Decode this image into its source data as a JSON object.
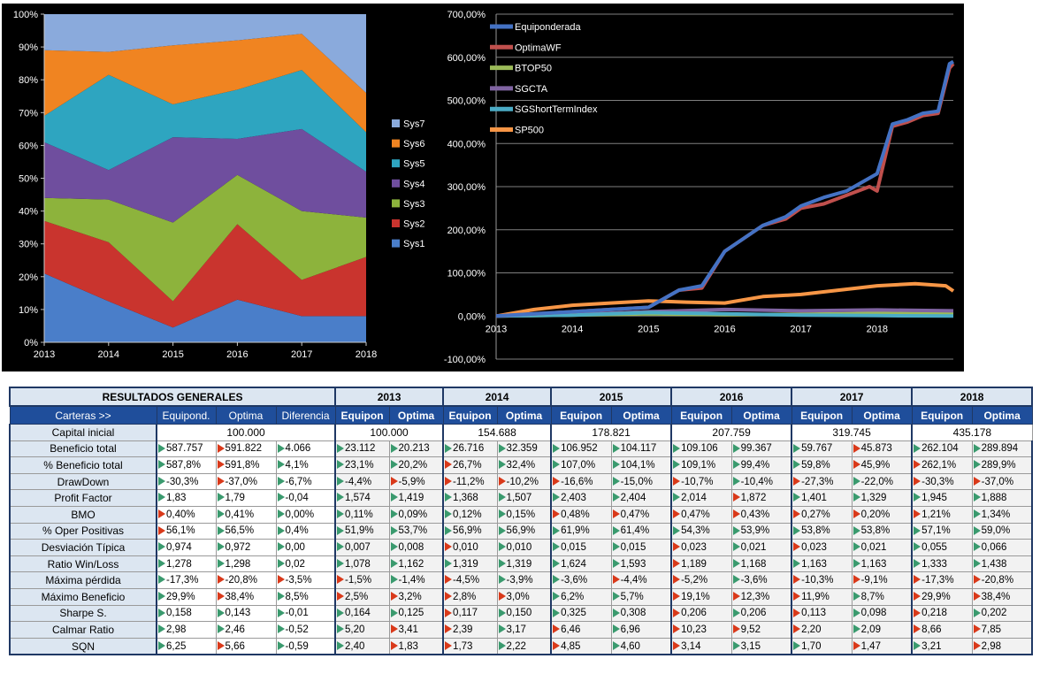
{
  "chart_data": [
    {
      "type": "area",
      "stacked": true,
      "categories": [
        "2013",
        "2014",
        "2015",
        "2016",
        "2017",
        "2018"
      ],
      "y_ticks": [
        "0%",
        "10%",
        "20%",
        "30%",
        "40%",
        "50%",
        "60%",
        "70%",
        "80%",
        "90%",
        "100%"
      ],
      "ylim": [
        0,
        100
      ],
      "legend_position": "right",
      "colors": {
        "Sys1": "#4a7ec9",
        "Sys2": "#c9342e",
        "Sys3": "#8db33c",
        "Sys4": "#6f4e9e",
        "Sys5": "#2ea5c0",
        "Sys6": "#f08421",
        "Sys7": "#8aaadc"
      },
      "series": [
        {
          "name": "Sys1",
          "values": [
            21,
            12.5,
            4.5,
            13,
            8,
            8
          ]
        },
        {
          "name": "Sys2",
          "values": [
            16,
            18,
            8,
            23,
            11,
            18
          ]
        },
        {
          "name": "Sys3",
          "values": [
            7,
            13,
            24,
            15,
            21,
            12
          ]
        },
        {
          "name": "Sys4",
          "values": [
            17,
            9,
            26,
            11,
            25,
            14
          ]
        },
        {
          "name": "Sys5",
          "values": [
            8,
            29,
            10,
            15,
            18,
            12
          ]
        },
        {
          "name": "Sys6",
          "values": [
            20,
            7,
            18,
            15,
            11,
            12
          ]
        },
        {
          "name": "Sys7",
          "values": [
            11,
            11.5,
            9.5,
            8,
            6,
            24
          ]
        }
      ],
      "legend_order": [
        "Sys7",
        "Sys6",
        "Sys5",
        "Sys4",
        "Sys3",
        "Sys2",
        "Sys1"
      ]
    },
    {
      "type": "line",
      "x_ticks": [
        "2013",
        "2014",
        "2015",
        "2016",
        "2017",
        "2018"
      ],
      "y_ticks": [
        "-100,00%",
        "0,00%",
        "100,00%",
        "200,00%",
        "300,00%",
        "400,00%",
        "500,00%",
        "600,00%",
        "700,00%"
      ],
      "ylim": [
        -100,
        700
      ],
      "xlim": [
        2013,
        2019
      ],
      "legend_position": "top-left",
      "series": [
        {
          "name": "Equiponderada",
          "color": "#4472c4",
          "x": [
            2013,
            2013.5,
            2014,
            2014.5,
            2015,
            2015.4,
            2015.7,
            2016,
            2016.5,
            2016.8,
            2017,
            2017.3,
            2017.6,
            2017.9,
            2018,
            2018.2,
            2018.4,
            2018.6,
            2018.8,
            2018.95,
            2019
          ],
          "y": [
            0,
            5,
            10,
            15,
            20,
            60,
            70,
            150,
            210,
            230,
            255,
            275,
            290,
            320,
            330,
            445,
            455,
            470,
            475,
            585,
            590
          ]
        },
        {
          "name": "OptimaWF",
          "color": "#c0504d",
          "x": [
            2013,
            2013.5,
            2014,
            2014.5,
            2015,
            2015.4,
            2015.7,
            2016,
            2016.5,
            2016.8,
            2017,
            2017.3,
            2017.6,
            2017.9,
            2018,
            2018.2,
            2018.4,
            2018.6,
            2018.8,
            2018.95,
            2019
          ],
          "y": [
            0,
            5,
            10,
            15,
            20,
            60,
            65,
            150,
            210,
            225,
            250,
            260,
            280,
            300,
            290,
            440,
            450,
            465,
            470,
            575,
            585
          ]
        },
        {
          "name": "BTOP50",
          "color": "#9bbb59",
          "x": [
            2013,
            2014,
            2015,
            2016,
            2017,
            2018,
            2019
          ],
          "y": [
            0,
            2,
            5,
            3,
            4,
            6,
            5
          ]
        },
        {
          "name": "SGCTA",
          "color": "#8064a2",
          "x": [
            2013,
            2014,
            2015,
            2016,
            2017,
            2018,
            2019
          ],
          "y": [
            0,
            3,
            10,
            15,
            12,
            14,
            12
          ]
        },
        {
          "name": "SGShortTermIndex",
          "color": "#4bacc6",
          "x": [
            2013,
            2014,
            2015,
            2016,
            2017,
            2018,
            2019
          ],
          "y": [
            0,
            2,
            8,
            5,
            2,
            1,
            0
          ]
        },
        {
          "name": "SP500",
          "color": "#f79646",
          "x": [
            2013,
            2013.5,
            2014,
            2014.5,
            2015,
            2015.5,
            2016,
            2016.5,
            2017,
            2017.5,
            2018,
            2018.5,
            2018.9,
            2019
          ],
          "y": [
            0,
            15,
            25,
            30,
            35,
            32,
            30,
            45,
            50,
            60,
            70,
            75,
            70,
            58
          ]
        }
      ]
    }
  ],
  "table": {
    "title": "RESULTADOS GENERALES",
    "years": [
      "2013",
      "2014",
      "2015",
      "2016",
      "2017",
      "2018"
    ],
    "sub_headers": {
      "label": "Carteras >>",
      "summary": [
        "Equipond.",
        "Optima",
        "Diferencia"
      ],
      "year": [
        "Equipon",
        "Optima"
      ]
    },
    "capital": {
      "label": "Capital inicial",
      "summary": "100.000",
      "years": [
        "100.000",
        "154.688",
        "178.821",
        "207.759",
        "319.745",
        "435.178"
      ]
    },
    "rows": [
      {
        "label": "Beneficio total",
        "cells": [
          [
            "g",
            "587.757"
          ],
          [
            "r",
            "591.822"
          ],
          [
            "g",
            "4.066"
          ],
          [
            "g",
            "23.112"
          ],
          [
            "g",
            "20.213"
          ],
          [
            "g",
            "26.716"
          ],
          [
            "g",
            "32.359"
          ],
          [
            "g",
            "106.952"
          ],
          [
            "g",
            "104.117"
          ],
          [
            "g",
            "109.106"
          ],
          [
            "g",
            "99.367"
          ],
          [
            "g",
            "59.767"
          ],
          [
            "r",
            "45.873"
          ],
          [
            "g",
            "262.104"
          ],
          [
            "g",
            "289.894"
          ]
        ]
      },
      {
        "label": "% Beneficio total",
        "cells": [
          [
            "g",
            "587,8%"
          ],
          [
            "r",
            "591,8%"
          ],
          [
            "g",
            "4,1%"
          ],
          [
            "g",
            "23,1%"
          ],
          [
            "g",
            "20,2%"
          ],
          [
            "r",
            "26,7%"
          ],
          [
            "g",
            "32,4%"
          ],
          [
            "g",
            "107,0%"
          ],
          [
            "g",
            "104,1%"
          ],
          [
            "g",
            "109,1%"
          ],
          [
            "g",
            "99,4%"
          ],
          [
            "g",
            "59,8%"
          ],
          [
            "r",
            "45,9%"
          ],
          [
            "r",
            "262,1%"
          ],
          [
            "g",
            "289,9%"
          ]
        ]
      },
      {
        "label": "DrawDown",
        "cells": [
          [
            "g",
            "-30,3%"
          ],
          [
            "r",
            "-37,0%"
          ],
          [
            "g",
            "-6,7%"
          ],
          [
            "g",
            "-4,4%"
          ],
          [
            "r",
            "-5,9%"
          ],
          [
            "r",
            "-11,2%"
          ],
          [
            "r",
            "-10,2%"
          ],
          [
            "r",
            "-16,6%"
          ],
          [
            "g",
            "-15,0%"
          ],
          [
            "r",
            "-10,7%"
          ],
          [
            "g",
            "-10,4%"
          ],
          [
            "r",
            "-27,3%"
          ],
          [
            "g",
            "-22,0%"
          ],
          [
            "r",
            "-30,3%"
          ],
          [
            "r",
            "-37,0%"
          ]
        ]
      },
      {
        "label": "Profit Factor",
        "cells": [
          [
            "g",
            "1,83"
          ],
          [
            "g",
            "1,79"
          ],
          [
            "g",
            "-0,04"
          ],
          [
            "g",
            "1,574"
          ],
          [
            "g",
            "1,419"
          ],
          [
            "g",
            "1,368"
          ],
          [
            "g",
            "1,507"
          ],
          [
            "g",
            "2,403"
          ],
          [
            "g",
            "2,404"
          ],
          [
            "g",
            "2,014"
          ],
          [
            "r",
            "1,872"
          ],
          [
            "g",
            "1,401"
          ],
          [
            "g",
            "1,329"
          ],
          [
            "g",
            "1,945"
          ],
          [
            "g",
            "1,888"
          ]
        ]
      },
      {
        "label": "BMO",
        "cells": [
          [
            "r",
            "0,40%"
          ],
          [
            "g",
            "0,41%"
          ],
          [
            "g",
            "0,00%"
          ],
          [
            "g",
            "0,11%"
          ],
          [
            "g",
            "0,09%"
          ],
          [
            "g",
            "0,12%"
          ],
          [
            "g",
            "0,15%"
          ],
          [
            "r",
            "0,48%"
          ],
          [
            "r",
            "0,47%"
          ],
          [
            "r",
            "0,47%"
          ],
          [
            "r",
            "0,43%"
          ],
          [
            "r",
            "0,27%"
          ],
          [
            "r",
            "0,20%"
          ],
          [
            "r",
            "1,21%"
          ],
          [
            "g",
            "1,34%"
          ]
        ]
      },
      {
        "label": "% Oper Positivas",
        "cells": [
          [
            "r",
            "56,1%"
          ],
          [
            "g",
            "56,5%"
          ],
          [
            "g",
            "0,4%"
          ],
          [
            "g",
            "51,9%"
          ],
          [
            "g",
            "53,7%"
          ],
          [
            "g",
            "56,9%"
          ],
          [
            "g",
            "56,9%"
          ],
          [
            "g",
            "61,9%"
          ],
          [
            "g",
            "61,4%"
          ],
          [
            "g",
            "54,3%"
          ],
          [
            "g",
            "53,9%"
          ],
          [
            "g",
            "53,8%"
          ],
          [
            "g",
            "53,8%"
          ],
          [
            "g",
            "57,1%"
          ],
          [
            "g",
            "59,0%"
          ]
        ]
      },
      {
        "label": "Desviación Típica",
        "cells": [
          [
            "g",
            "0,974"
          ],
          [
            "g",
            "0,972"
          ],
          [
            "g",
            "0,00"
          ],
          [
            "g",
            "0,007"
          ],
          [
            "g",
            "0,008"
          ],
          [
            "r",
            "0,010"
          ],
          [
            "g",
            "0,010"
          ],
          [
            "g",
            "0,015"
          ],
          [
            "g",
            "0,015"
          ],
          [
            "r",
            "0,023"
          ],
          [
            "g",
            "0,021"
          ],
          [
            "r",
            "0,023"
          ],
          [
            "g",
            "0,021"
          ],
          [
            "g",
            "0,055"
          ],
          [
            "g",
            "0,066"
          ]
        ]
      },
      {
        "label": "Ratio Win/Loss",
        "cells": [
          [
            "g",
            "1,278"
          ],
          [
            "g",
            "1,298"
          ],
          [
            "g",
            "0,02"
          ],
          [
            "g",
            "1,078"
          ],
          [
            "g",
            "1,162"
          ],
          [
            "g",
            "1,319"
          ],
          [
            "g",
            "1,319"
          ],
          [
            "g",
            "1,624"
          ],
          [
            "g",
            "1,593"
          ],
          [
            "r",
            "1,189"
          ],
          [
            "g",
            "1,168"
          ],
          [
            "g",
            "1,163"
          ],
          [
            "g",
            "1,163"
          ],
          [
            "g",
            "1,333"
          ],
          [
            "g",
            "1,438"
          ]
        ]
      },
      {
        "label": "Máxima pérdida",
        "cells": [
          [
            "g",
            "-17,3%"
          ],
          [
            "r",
            "-20,8%"
          ],
          [
            "r",
            "-3,5%"
          ],
          [
            "r",
            "-1,5%"
          ],
          [
            "g",
            "-1,4%"
          ],
          [
            "r",
            "-4,5%"
          ],
          [
            "g",
            "-3,9%"
          ],
          [
            "g",
            "-3,6%"
          ],
          [
            "r",
            "-4,4%"
          ],
          [
            "r",
            "-5,2%"
          ],
          [
            "g",
            "-3,6%"
          ],
          [
            "r",
            "-10,3%"
          ],
          [
            "r",
            "-9,1%"
          ],
          [
            "r",
            "-17,3%"
          ],
          [
            "r",
            "-20,8%"
          ]
        ]
      },
      {
        "label": "Máximo Beneficio",
        "cells": [
          [
            "g",
            "29,9%"
          ],
          [
            "r",
            "38,4%"
          ],
          [
            "g",
            "8,5%"
          ],
          [
            "r",
            "2,5%"
          ],
          [
            "r",
            "3,2%"
          ],
          [
            "r",
            "2,8%"
          ],
          [
            "r",
            "3,0%"
          ],
          [
            "g",
            "6,2%"
          ],
          [
            "g",
            "5,7%"
          ],
          [
            "r",
            "19,1%"
          ],
          [
            "r",
            "12,3%"
          ],
          [
            "r",
            "11,9%"
          ],
          [
            "g",
            "8,7%"
          ],
          [
            "r",
            "29,9%"
          ],
          [
            "r",
            "38,4%"
          ]
        ]
      },
      {
        "label": "Sharpe S.",
        "cells": [
          [
            "g",
            "0,158"
          ],
          [
            "g",
            "0,143"
          ],
          [
            "g",
            "-0,01"
          ],
          [
            "g",
            "0,164"
          ],
          [
            "g",
            "0,125"
          ],
          [
            "r",
            "0,117"
          ],
          [
            "g",
            "0,150"
          ],
          [
            "g",
            "0,325"
          ],
          [
            "g",
            "0,308"
          ],
          [
            "r",
            "0,206"
          ],
          [
            "g",
            "0,206"
          ],
          [
            "r",
            "0,113"
          ],
          [
            "g",
            "0,098"
          ],
          [
            "r",
            "0,218"
          ],
          [
            "g",
            "0,202"
          ]
        ]
      },
      {
        "label": "Calmar Ratio",
        "cells": [
          [
            "g",
            "2,98"
          ],
          [
            "g",
            "2,46"
          ],
          [
            "g",
            "-0,52"
          ],
          [
            "g",
            "5,20"
          ],
          [
            "r",
            "3,41"
          ],
          [
            "r",
            "2,39"
          ],
          [
            "g",
            "3,17"
          ],
          [
            "r",
            "6,46"
          ],
          [
            "g",
            "6,96"
          ],
          [
            "r",
            "10,23"
          ],
          [
            "r",
            "9,52"
          ],
          [
            "r",
            "2,20"
          ],
          [
            "g",
            "2,09"
          ],
          [
            "r",
            "8,66"
          ],
          [
            "r",
            "7,85"
          ]
        ]
      },
      {
        "label": "SQN",
        "cells": [
          [
            "g",
            "6,25"
          ],
          [
            "r",
            "5,66"
          ],
          [
            "g",
            "-0,59"
          ],
          [
            "g",
            "2,40"
          ],
          [
            "r",
            "1,83"
          ],
          [
            "r",
            "1,73"
          ],
          [
            "g",
            "2,22"
          ],
          [
            "r",
            "4,85"
          ],
          [
            "g",
            "4,60"
          ],
          [
            "r",
            "3,14"
          ],
          [
            "g",
            "3,15"
          ],
          [
            "g",
            "1,70"
          ],
          [
            "r",
            "1,47"
          ],
          [
            "g",
            "3,21"
          ],
          [
            "r",
            "2,98"
          ]
        ]
      }
    ]
  }
}
